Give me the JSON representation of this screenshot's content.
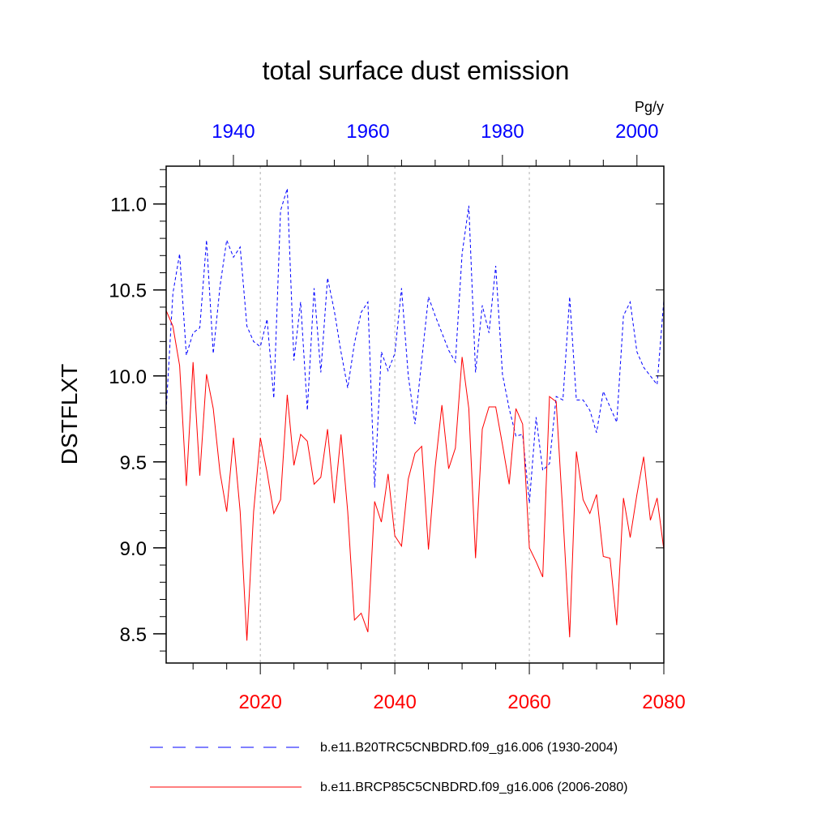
{
  "chart_data": {
    "type": "line",
    "title": "total surface dust emission",
    "ylabel": "DSTFLXT",
    "units_label": "Pg/y",
    "ylim": [
      8.33,
      11.22
    ],
    "yticks": [
      8.5,
      9.0,
      9.5,
      10.0,
      10.5,
      11.0
    ],
    "ytick_labels": [
      "8.5",
      "9.0",
      "9.5",
      "10.0",
      "10.5",
      "11.0"
    ],
    "y_minor_step": 0.1,
    "x_bottom": {
      "range": [
        2006,
        2080
      ],
      "ticks": [
        2020,
        2040,
        2060,
        2080
      ],
      "tick_labels": [
        "2020",
        "2040",
        "2060",
        "2080"
      ],
      "color": "#ff0000"
    },
    "x_top": {
      "range": [
        1930,
        2004
      ],
      "ticks": [
        1940,
        1960,
        1980,
        2000
      ],
      "tick_labels": [
        "1940",
        "1960",
        "1980",
        "2000"
      ],
      "color": "#0000ff"
    },
    "gridlines_x": [
      2020,
      2040,
      2060
    ],
    "grid": "dotted vertical at major bottom ticks",
    "legend_placement": "bottom",
    "series": [
      {
        "name": "b.e11.B20TRC5CNBDRD.f09_g16.006 (1930-2004)",
        "color": "#0000ff",
        "dash": "dashed",
        "x_axis": "top",
        "x_start": 1930,
        "values": [
          9.8,
          10.48,
          10.71,
          10.12,
          10.25,
          10.28,
          10.79,
          10.13,
          10.52,
          10.79,
          10.69,
          10.75,
          10.29,
          10.2,
          10.17,
          10.33,
          9.87,
          10.96,
          11.09,
          10.09,
          10.43,
          9.8,
          10.51,
          10.02,
          10.57,
          10.38,
          10.14,
          9.93,
          10.19,
          10.37,
          10.43,
          9.35,
          10.14,
          10.03,
          10.13,
          10.51,
          10.0,
          9.72,
          10.09,
          10.46,
          10.35,
          10.25,
          10.15,
          10.08,
          10.71,
          10.99,
          10.02,
          10.41,
          10.25,
          10.64,
          10.01,
          9.81,
          9.65,
          9.66,
          9.26,
          9.76,
          9.45,
          9.49,
          9.88,
          9.86,
          10.46,
          9.86,
          9.86,
          9.8,
          9.67,
          9.91,
          9.82,
          9.73,
          10.35,
          10.43,
          10.14,
          10.05,
          10.0,
          9.95,
          10.44
        ]
      },
      {
        "name": "b.e11.BRCP85C5CNBDRD.f09_g16.006 (2006-2080)",
        "color": "#ff0000",
        "dash": "solid",
        "x_axis": "bottom",
        "x_start": 2006,
        "values": [
          10.38,
          10.29,
          10.06,
          9.36,
          10.08,
          9.42,
          10.01,
          9.81,
          9.44,
          9.21,
          9.64,
          9.21,
          8.46,
          9.21,
          9.64,
          9.44,
          9.2,
          9.28,
          9.89,
          9.48,
          9.66,
          9.62,
          9.37,
          9.41,
          9.69,
          9.26,
          9.66,
          9.21,
          8.58,
          8.62,
          8.51,
          9.27,
          9.15,
          9.43,
          9.07,
          9.01,
          9.4,
          9.55,
          9.59,
          8.99,
          9.47,
          9.83,
          9.46,
          9.58,
          10.11,
          9.81,
          8.94,
          9.69,
          9.82,
          9.82,
          9.6,
          9.37,
          9.81,
          9.72,
          9.0,
          8.92,
          8.83,
          9.88,
          9.85,
          9.19,
          8.48,
          9.56,
          9.28,
          9.2,
          9.31,
          8.95,
          8.94,
          8.55,
          9.29,
          9.06,
          9.31,
          9.53,
          9.16,
          9.29,
          8.99
        ]
      }
    ]
  }
}
